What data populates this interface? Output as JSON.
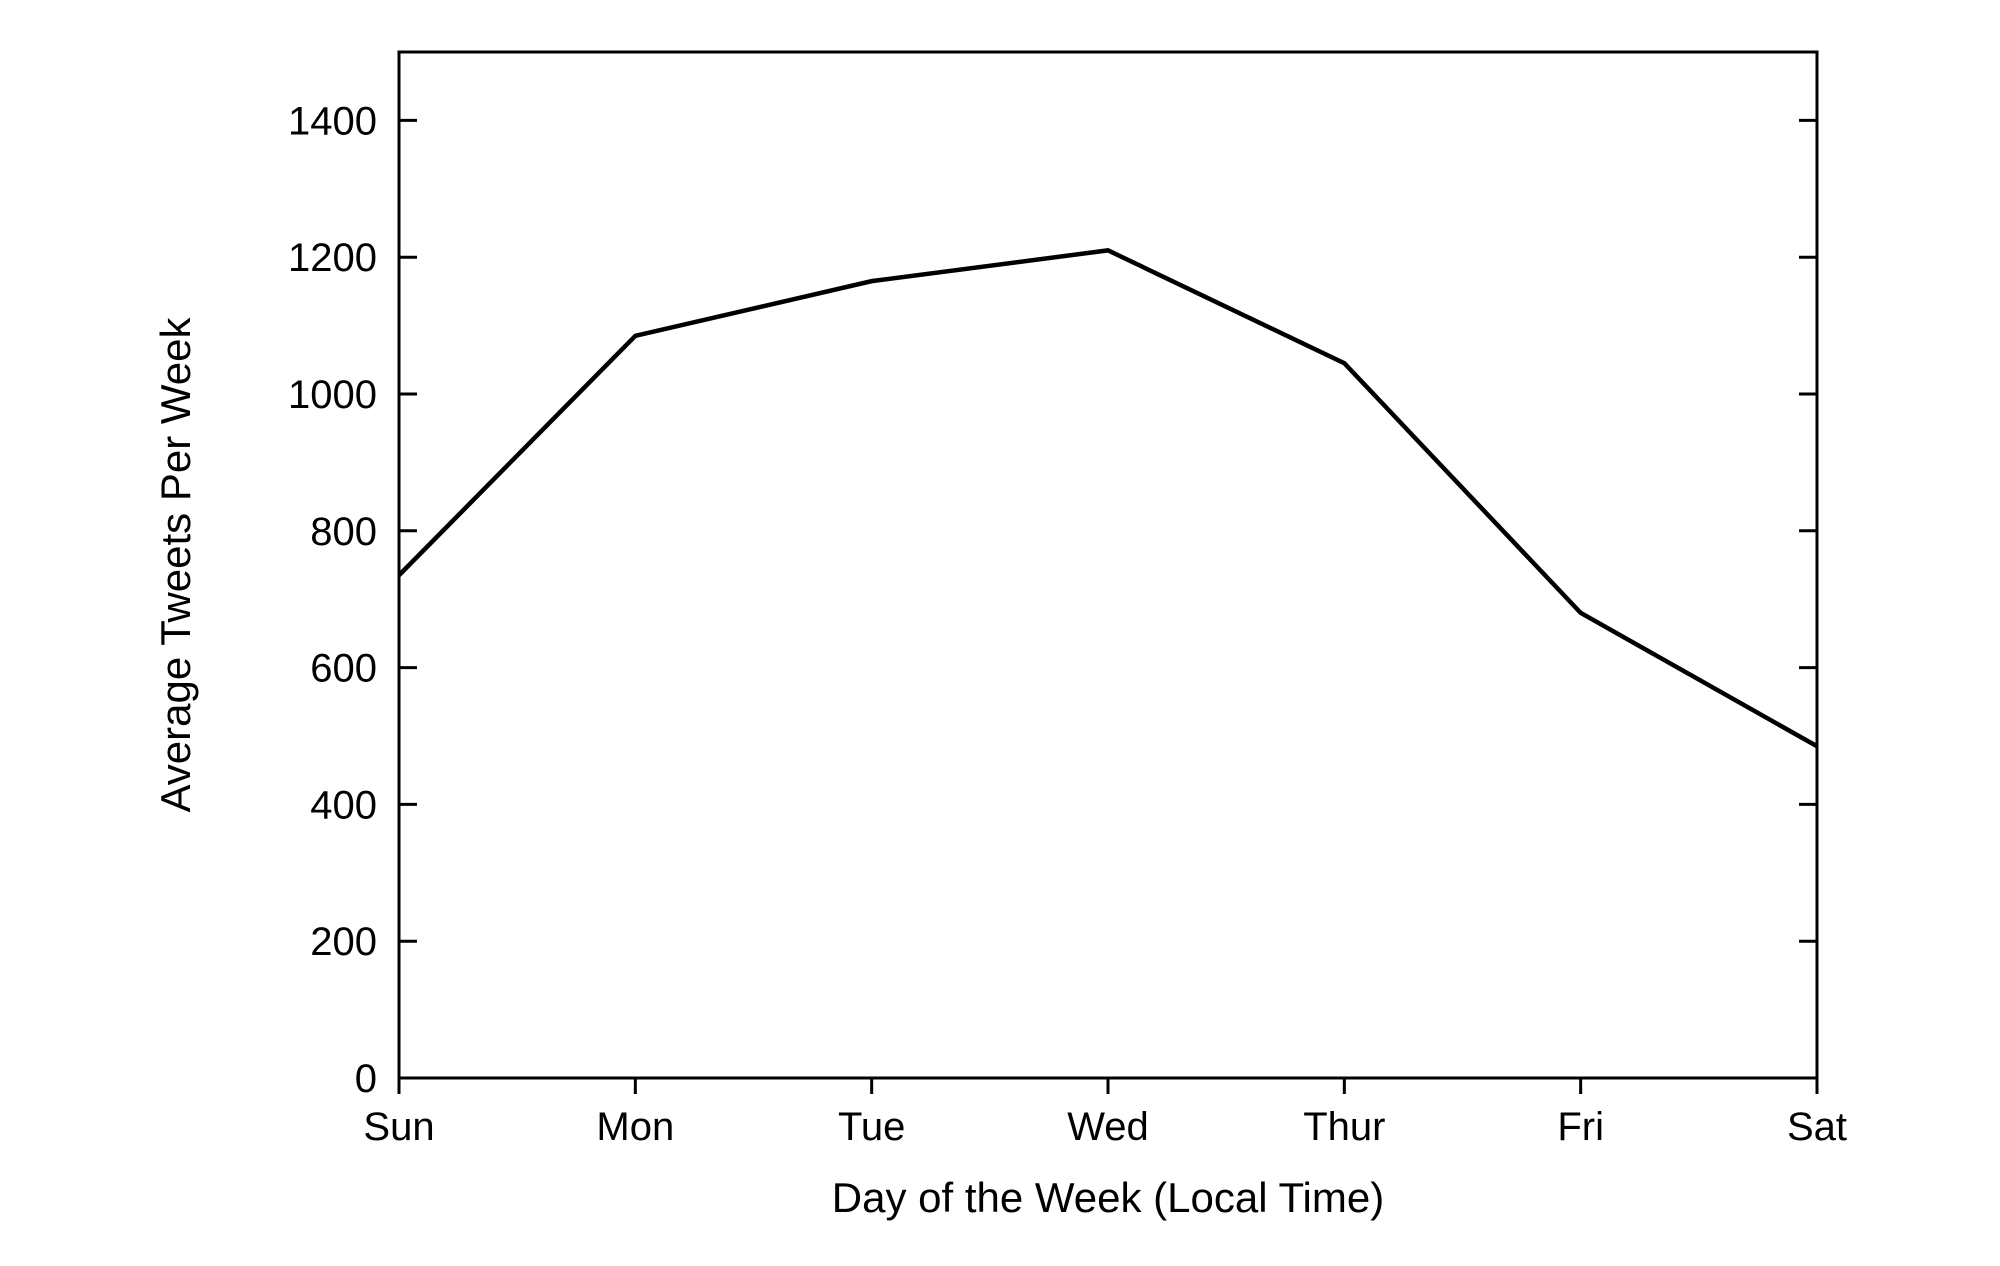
{
  "chart_data": {
    "type": "line",
    "title": "",
    "xlabel": "Day of the Week (Local Time)",
    "ylabel": "Average Tweets Per Week",
    "categories": [
      "Sun",
      "Mon",
      "Tue",
      "Wed",
      "Thur",
      "Fri",
      "Sat"
    ],
    "values": [
      735,
      1085,
      1165,
      1210,
      1045,
      680,
      485
    ],
    "series": [
      {
        "name": "Average Tweets Per Week",
        "values": [
          735,
          1085,
          1165,
          1210,
          1045,
          680,
          485
        ]
      }
    ],
    "ylim": [
      0,
      1500
    ],
    "yticks": [
      0,
      200,
      400,
      600,
      800,
      1000,
      1200,
      1400
    ],
    "grid": false,
    "legend_position": "none",
    "line_color": "#000000",
    "axis_color": "#000000",
    "background_color": "#ffffff"
  }
}
